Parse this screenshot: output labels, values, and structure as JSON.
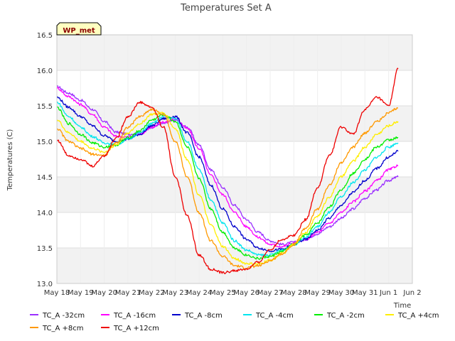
{
  "chart_data": {
    "type": "line",
    "title": "Temperatures Set A",
    "xlabel": "Time",
    "ylabel": "Temperatures (C)",
    "ylim": [
      13.0,
      16.5
    ],
    "yticks": [
      "13.0",
      "13.5",
      "14.0",
      "14.5",
      "15.0",
      "15.5",
      "16.0",
      "16.5"
    ],
    "xlim_day": [
      18,
      33
    ],
    "xticks": [
      "May 18",
      "May 19",
      "May 20",
      "May 21",
      "May 22",
      "May 23",
      "May 24",
      "May 25",
      "May 26",
      "May 27",
      "May 28",
      "May 29",
      "May 30",
      "May 31",
      "Jun 1",
      "Jun 2"
    ],
    "badge": "WP_met",
    "grid": true,
    "background_bands": true,
    "legend_position": "bottom",
    "x_day": [
      18.0,
      18.5,
      19.0,
      19.5,
      20.0,
      20.5,
      21.0,
      21.5,
      22.0,
      22.5,
      23.0,
      23.5,
      24.0,
      24.5,
      25.0,
      25.5,
      26.0,
      26.5,
      27.0,
      27.5,
      28.0,
      28.5,
      29.0,
      29.5,
      30.0,
      30.5,
      31.0,
      31.5,
      32.0,
      32.4
    ],
    "series": [
      {
        "name": "TC_A -32cm",
        "color": "#9b30ff",
        "values": [
          15.77,
          15.68,
          15.58,
          15.45,
          15.28,
          15.13,
          15.1,
          15.12,
          15.2,
          15.25,
          15.3,
          15.2,
          14.95,
          14.6,
          14.35,
          14.1,
          13.9,
          13.72,
          13.6,
          13.55,
          13.58,
          13.62,
          13.7,
          13.8,
          13.92,
          14.05,
          14.2,
          14.32,
          14.45,
          14.5
        ]
      },
      {
        "name": "TC_A -16cm",
        "color": "#ff00ff",
        "values": [
          15.75,
          15.63,
          15.52,
          15.38,
          15.2,
          15.07,
          15.06,
          15.1,
          15.2,
          15.27,
          15.32,
          15.18,
          14.9,
          14.52,
          14.25,
          14.0,
          13.8,
          13.65,
          13.55,
          13.52,
          13.57,
          13.62,
          13.72,
          13.85,
          14.0,
          14.15,
          14.3,
          14.45,
          14.6,
          14.66
        ]
      },
      {
        "name": "TC_A -8cm",
        "color": "#0000cc",
        "values": [
          15.62,
          15.48,
          15.35,
          15.22,
          15.08,
          15.0,
          15.03,
          15.1,
          15.22,
          15.32,
          15.35,
          15.12,
          14.78,
          14.38,
          14.05,
          13.8,
          13.62,
          13.5,
          13.46,
          13.48,
          13.55,
          13.62,
          13.75,
          13.92,
          14.1,
          14.28,
          14.45,
          14.62,
          14.78,
          14.86
        ]
      },
      {
        "name": "TC_A -4cm",
        "color": "#00e5ee",
        "values": [
          15.55,
          15.35,
          15.2,
          15.07,
          14.98,
          14.95,
          15.03,
          15.12,
          15.25,
          15.35,
          15.32,
          15.0,
          14.6,
          14.18,
          13.85,
          13.6,
          13.47,
          13.4,
          13.4,
          13.47,
          13.55,
          13.65,
          13.8,
          14.0,
          14.22,
          14.42,
          14.6,
          14.78,
          14.92,
          14.98
        ]
      },
      {
        "name": "TC_A -2cm",
        "color": "#00ee00",
        "values": [
          15.48,
          15.25,
          15.1,
          14.98,
          14.92,
          14.95,
          15.05,
          15.15,
          15.3,
          15.38,
          15.28,
          14.92,
          14.48,
          14.05,
          13.72,
          13.5,
          13.4,
          13.35,
          13.38,
          13.45,
          13.55,
          13.68,
          13.85,
          14.08,
          14.32,
          14.55,
          14.75,
          14.92,
          15.02,
          15.05
        ]
      },
      {
        "name": "TC_A +4cm",
        "color": "#ffee00",
        "values": [
          15.3,
          15.12,
          15.0,
          14.9,
          14.85,
          14.95,
          15.12,
          15.25,
          15.38,
          15.4,
          15.18,
          14.75,
          14.25,
          13.82,
          13.52,
          13.35,
          13.28,
          13.27,
          13.33,
          13.42,
          13.55,
          13.72,
          13.95,
          14.22,
          14.5,
          14.72,
          14.92,
          15.1,
          15.22,
          15.28
        ]
      },
      {
        "name": "TC_A +8cm",
        "color": "#ff9900",
        "values": [
          15.18,
          15.0,
          14.9,
          14.82,
          14.8,
          14.98,
          15.2,
          15.35,
          15.45,
          15.38,
          15.0,
          14.5,
          14.0,
          13.6,
          13.38,
          13.25,
          13.22,
          13.25,
          13.32,
          13.42,
          13.55,
          13.78,
          14.05,
          14.38,
          14.7,
          14.92,
          15.12,
          15.28,
          15.4,
          15.47
        ]
      },
      {
        "name": "TC_A +12cm",
        "color": "#ee0000",
        "values": [
          15.02,
          14.8,
          14.75,
          14.65,
          14.8,
          15.05,
          15.35,
          15.55,
          15.48,
          15.2,
          14.5,
          13.95,
          13.4,
          13.2,
          13.15,
          13.18,
          13.2,
          13.3,
          13.48,
          13.62,
          13.68,
          13.9,
          14.35,
          14.8,
          15.2,
          15.1,
          15.45,
          15.62,
          15.5,
          16.02
        ]
      }
    ]
  }
}
